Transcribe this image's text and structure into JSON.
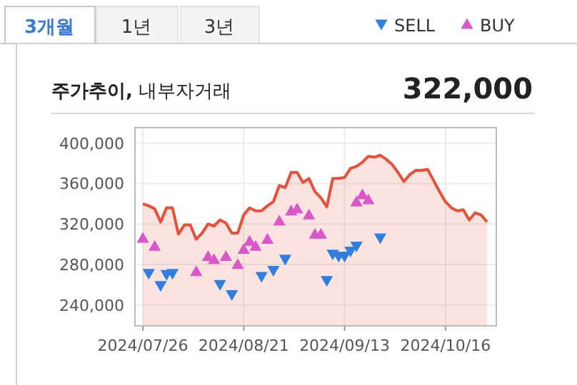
{
  "chart_data": {
    "type": "area",
    "title": "**주가추이,** 내부자거래",
    "subtitle": "322,000",
    "annotations": [
      "3개월",
      "1년",
      "3년"
    ],
    "categories": [
      "2024/07/26",
      null,
      null,
      null,
      null,
      null,
      null,
      null,
      null,
      null,
      null,
      null,
      null,
      null,
      null,
      null,
      null,
      "2024/08/21",
      null,
      null,
      null,
      null,
      null,
      null,
      null,
      null,
      null,
      null,
      null,
      null,
      null,
      null,
      null,
      null,
      "2024/09/13",
      null,
      null,
      null,
      null,
      null,
      null,
      null,
      null,
      null,
      null,
      null,
      null,
      null,
      null,
      null,
      null,
      "2024/10/16",
      null,
      null,
      null,
      null,
      null,
      null,
      null
    ],
    "series": [
      {
        "color": "#e8503a",
        "values": [
          340000,
          338000,
          335000,
          322000,
          336000,
          336000,
          310000,
          319000,
          319000,
          305000,
          311000,
          320000,
          318000,
          324000,
          321000,
          311000,
          311000,
          329000,
          336000,
          333000,
          333000,
          338000,
          342000,
          358000,
          356000,
          371000,
          371000,
          361000,
          365000,
          352000,
          346000,
          337000,
          365000,
          365000,
          366000,
          375000,
          377000,
          381000,
          387000,
          386000,
          388000,
          384000,
          379000,
          371000,
          362000,
          369000,
          373000,
          373000,
          374000,
          363000,
          352000,
          342000,
          336000,
          333000,
          334000,
          324000,
          331000,
          329000,
          322000
        ]
      },
      {
        "type": "scatter",
        "name": "SELL",
        "marker": "triangle",
        "color": "#2f7fe0",
        "values": [
          null,
          271000,
          null,
          259000,
          270000,
          271000,
          null,
          null,
          null,
          null,
          null,
          null,
          null,
          260000,
          null,
          250000,
          null,
          null,
          null,
          null,
          268000,
          null,
          274000,
          null,
          285000,
          null,
          null,
          null,
          null,
          null,
          null,
          264000,
          290000,
          288000,
          288000,
          293000,
          298000,
          null,
          null,
          null,
          306000,
          null,
          null,
          null,
          null,
          null,
          null,
          null,
          null,
          null,
          null,
          null,
          null,
          null,
          null,
          null,
          null,
          null,
          null
        ]
      },
      {
        "type": "scatter",
        "name": "BUY",
        "marker": "triangle",
        "color": "#d957c8",
        "values": [
          306000,
          null,
          298000,
          null,
          null,
          null,
          null,
          null,
          null,
          273000,
          null,
          288000,
          285000,
          null,
          288000,
          null,
          280000,
          295000,
          303000,
          298000,
          null,
          305000,
          null,
          323000,
          null,
          333000,
          335000,
          null,
          329000,
          310000,
          310000,
          null,
          null,
          null,
          null,
          null,
          342000,
          349000,
          344000,
          null,
          null,
          null,
          null,
          null,
          null,
          null,
          null,
          null,
          null,
          null,
          null,
          null,
          null,
          null,
          null,
          null,
          null,
          null,
          null
        ]
      }
    ],
    "ylim": [
      220000,
      416000
    ],
    "yticks": [
      {
        "value": 240000,
        "label": "240,000"
      },
      {
        "value": 280000,
        "label": "280,000"
      },
      {
        "value": 320000,
        "label": "320,000"
      },
      {
        "value": 360000,
        "label": "360,000"
      },
      {
        "value": 400000,
        "label": "400,000"
      }
    ],
    "grid": true,
    "legend": "top right"
  }
}
